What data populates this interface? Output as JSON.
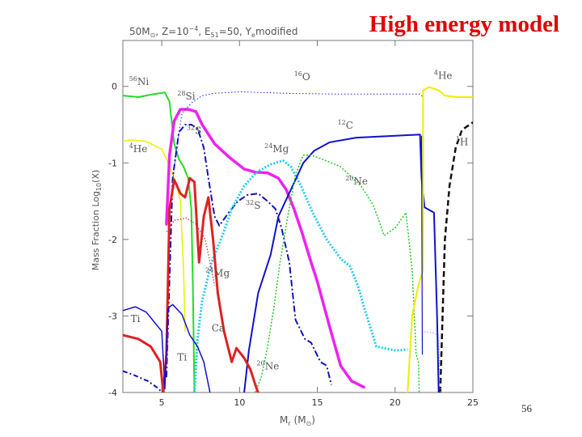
{
  "slide": {
    "title": "High energy model",
    "page_number": "56"
  },
  "chart_data": {
    "type": "line",
    "title": "50M☉, Z=10⁻⁴, E₅₁=50, Yₑmodified",
    "xlabel": "Mr (M☉)",
    "ylabel": "Mass Fraction  Log10(X)",
    "xlim": [
      2.5,
      25
    ],
    "ylim": [
      -4,
      0.6
    ],
    "xticks": [
      5,
      10,
      15,
      20,
      25
    ],
    "yticks": [
      0,
      -1,
      -2,
      -3,
      -4
    ],
    "grid": false,
    "legend": "inline labels",
    "series": [
      {
        "id": "ni56",
        "name": "56Ni",
        "color": "#22dd22",
        "width": 2,
        "dash": "",
        "points": [
          [
            2.5,
            -0.12
          ],
          [
            3.5,
            -0.14
          ],
          [
            4.5,
            -0.1
          ],
          [
            5.2,
            -0.08
          ],
          [
            5.5,
            -0.2
          ],
          [
            5.8,
            -0.75
          ],
          [
            6.1,
            -0.95
          ],
          [
            6.4,
            -1.05
          ],
          [
            6.7,
            -1.2
          ],
          [
            6.9,
            -1.6
          ],
          [
            7.0,
            -2.6
          ],
          [
            7.1,
            -4.0
          ]
        ]
      },
      {
        "id": "he4_inner",
        "name": "4He",
        "color": "#eeee00",
        "width": 1.5,
        "dash": "",
        "points": [
          [
            2.5,
            -0.72
          ],
          [
            3,
            -0.7
          ],
          [
            4,
            -0.72
          ],
          [
            5,
            -0.82
          ],
          [
            5.3,
            -0.95
          ],
          [
            5.6,
            -1.1
          ],
          [
            5.9,
            -1.25
          ],
          [
            6.2,
            -1.5
          ],
          [
            6.4,
            -2.4
          ],
          [
            6.5,
            -3.2
          ]
        ]
      },
      {
        "id": "si28",
        "name": "28Si",
        "color": "#ee22ee",
        "width": 3.5,
        "dash": "",
        "points": [
          [
            5.3,
            -1.8
          ],
          [
            5.5,
            -0.9
          ],
          [
            5.8,
            -0.45
          ],
          [
            6.2,
            -0.3
          ],
          [
            6.7,
            -0.3
          ],
          [
            7.2,
            -0.33
          ],
          [
            7.6,
            -0.5
          ],
          [
            8.4,
            -0.75
          ],
          [
            9.3,
            -0.92
          ],
          [
            10.3,
            -1.08
          ],
          [
            11,
            -1.12
          ],
          [
            11.8,
            -1.13
          ],
          [
            12.5,
            -1.2
          ],
          [
            13,
            -1.35
          ],
          [
            13.5,
            -1.6
          ],
          [
            14,
            -1.9
          ],
          [
            14.6,
            -2.3
          ],
          [
            15,
            -2.55
          ],
          [
            15.8,
            -3.15
          ],
          [
            16.5,
            -3.65
          ],
          [
            17.2,
            -3.85
          ],
          [
            18,
            -3.93
          ]
        ]
      },
      {
        "id": "o16",
        "name": "16O",
        "color": "#2222ee",
        "width": 1,
        "dash": "1.5 2.5",
        "points": [
          [
            5.3,
            -3.2
          ],
          [
            5.5,
            -1.6
          ],
          [
            5.9,
            -0.9
          ],
          [
            6.3,
            -0.35
          ],
          [
            6.9,
            -0.22
          ],
          [
            7.6,
            -0.12
          ],
          [
            8.4,
            -0.09
          ],
          [
            10,
            -0.07
          ],
          [
            13,
            -0.09
          ],
          [
            16,
            -0.1
          ],
          [
            20,
            -0.1
          ],
          [
            21.6,
            -0.1
          ],
          [
            21.8,
            -0.14
          ]
        ]
      },
      {
        "id": "s32_inner",
        "name": "32S",
        "color": "#1111bb",
        "width": 2,
        "dash": "8 3 2 3",
        "points": [
          [
            5.3,
            -3.8
          ],
          [
            5.7,
            -1.2
          ],
          [
            6.1,
            -0.6
          ],
          [
            6.5,
            -0.5
          ],
          [
            6.9,
            -0.5
          ],
          [
            7.3,
            -0.55
          ],
          [
            7.7,
            -0.8
          ],
          [
            8.0,
            -1.2
          ],
          [
            8.4,
            -1.7
          ],
          [
            8.7,
            -1.82
          ],
          [
            9.3,
            -1.65
          ],
          [
            9.9,
            -1.5
          ],
          [
            10.5,
            -1.42
          ],
          [
            11.2,
            -1.4
          ],
          [
            11.8,
            -1.5
          ],
          [
            12.3,
            -1.6
          ],
          [
            12.7,
            -1.85
          ],
          [
            13.2,
            -2.3
          ],
          [
            13.6,
            -3.05
          ],
          [
            14.2,
            -3.3
          ],
          [
            14.6,
            -3.35
          ],
          [
            15.2,
            -3.6
          ],
          [
            15.6,
            -3.65
          ],
          [
            15.9,
            -3.9
          ]
        ]
      },
      {
        "id": "mg24",
        "name": "24Mg",
        "color": "#22ccee",
        "width": 3,
        "dash": "2 2",
        "points": [
          [
            7.1,
            -4.0
          ],
          [
            7.3,
            -3.3
          ],
          [
            7.6,
            -2.8
          ],
          [
            8.2,
            -2.3
          ],
          [
            8.9,
            -1.95
          ],
          [
            9.5,
            -1.6
          ],
          [
            10.3,
            -1.3
          ],
          [
            11.1,
            -1.12
          ],
          [
            12,
            -1.02
          ],
          [
            12.8,
            -0.97
          ],
          [
            13.3,
            -1.05
          ],
          [
            14,
            -1.32
          ],
          [
            14.7,
            -1.65
          ],
          [
            15.6,
            -2.0
          ],
          [
            16.5,
            -2.25
          ],
          [
            17.1,
            -2.35
          ],
          [
            17.6,
            -2.6
          ],
          [
            18.1,
            -2.95
          ],
          [
            18.8,
            -3.4
          ],
          [
            20,
            -3.45
          ],
          [
            20.8,
            -3.44
          ]
        ]
      },
      {
        "id": "c12",
        "name": "12C",
        "color": "#1111cc",
        "width": 2,
        "dash": "",
        "points": [
          [
            10.3,
            -4.0
          ],
          [
            10.6,
            -3.45
          ],
          [
            11.2,
            -2.7
          ],
          [
            12,
            -2.2
          ],
          [
            12.5,
            -1.7
          ],
          [
            13.3,
            -1.35
          ],
          [
            14.1,
            -1.0
          ],
          [
            14.8,
            -0.84
          ],
          [
            15.8,
            -0.73
          ],
          [
            17.5,
            -0.67
          ],
          [
            19.5,
            -0.65
          ],
          [
            21.6,
            -0.63
          ],
          [
            21.7,
            -1.2
          ],
          [
            21.9,
            -1.58
          ],
          [
            22.5,
            -1.65
          ],
          [
            22.7,
            -3.0
          ],
          [
            22.8,
            -4.0
          ]
        ]
      },
      {
        "id": "ne20",
        "name": "20Ne",
        "color": "#22cc22",
        "width": 1.5,
        "dash": "2 2",
        "points": [
          [
            11,
            -4.0
          ],
          [
            11.4,
            -3.8
          ],
          [
            11.8,
            -3.4
          ],
          [
            12.2,
            -2.9
          ],
          [
            12.6,
            -2.3
          ],
          [
            13.1,
            -1.7
          ],
          [
            13.6,
            -1.15
          ],
          [
            14.1,
            -0.9
          ],
          [
            14.6,
            -0.9
          ],
          [
            15.3,
            -0.95
          ],
          [
            16.5,
            -1.05
          ],
          [
            17.8,
            -1.3
          ],
          [
            18.6,
            -1.55
          ],
          [
            19.3,
            -1.95
          ],
          [
            20,
            -1.85
          ],
          [
            20.7,
            -1.65
          ],
          [
            21.1,
            -2.4
          ],
          [
            21.35,
            -3.5
          ],
          [
            21.5,
            -3.6
          ],
          [
            21.55,
            -4.0
          ]
        ]
      },
      {
        "id": "he4_outer",
        "name": "4He",
        "color": "#eeee00",
        "width": 2,
        "dash": "",
        "points": [
          [
            20.8,
            -4.0
          ],
          [
            21.1,
            -3.0
          ],
          [
            21.5,
            -2.6
          ],
          [
            21.8,
            -2.4
          ],
          [
            21.8,
            -0.05
          ],
          [
            22.2,
            -0.01
          ],
          [
            22.8,
            -0.05
          ],
          [
            23.2,
            -0.12
          ],
          [
            24,
            -0.14
          ],
          [
            25,
            -0.14
          ]
        ]
      },
      {
        "id": "h1",
        "name": "1H",
        "color": "#111111",
        "width": 2.5,
        "dash": "7 4",
        "points": [
          [
            22.9,
            -4.0
          ],
          [
            23.05,
            -3.0
          ],
          [
            23.2,
            -2.0
          ],
          [
            23.5,
            -1.3
          ],
          [
            23.9,
            -0.8
          ],
          [
            24.3,
            -0.57
          ],
          [
            25,
            -0.47
          ]
        ]
      },
      {
        "id": "ca",
        "name": "Ca",
        "color": "#dd2222",
        "width": 3,
        "dash": "",
        "points": [
          [
            2.5,
            -3.25
          ],
          [
            3.5,
            -3.3
          ],
          [
            4.3,
            -3.4
          ],
          [
            4.9,
            -3.6
          ],
          [
            5.1,
            -4.0
          ],
          [
            5.3,
            -3.5
          ],
          [
            5.5,
            -1.6
          ],
          [
            5.8,
            -1.22
          ],
          [
            6.2,
            -1.4
          ],
          [
            6.5,
            -1.45
          ],
          [
            6.8,
            -1.2
          ],
          [
            7.1,
            -1.25
          ],
          [
            7.4,
            -2.3
          ],
          [
            7.7,
            -1.7
          ],
          [
            8.0,
            -1.45
          ],
          [
            8.3,
            -2.0
          ],
          [
            8.6,
            -2.7
          ],
          [
            9.0,
            -3.2
          ],
          [
            9.5,
            -3.6
          ],
          [
            9.8,
            -3.42
          ],
          [
            10.3,
            -3.55
          ],
          [
            10.7,
            -3.7
          ],
          [
            11.1,
            -3.95
          ],
          [
            11.2,
            -4.0
          ]
        ]
      },
      {
        "id": "ca_dotted",
        "name": "",
        "color": "#dd2222",
        "width": 1.2,
        "dash": "1.5 2",
        "points": [
          [
            5.3,
            -1.9
          ],
          [
            5.8,
            -1.75
          ],
          [
            6.6,
            -1.72
          ],
          [
            7.2,
            -1.8
          ],
          [
            7.8,
            -2.0
          ],
          [
            8.4,
            -2.6
          ]
        ]
      },
      {
        "id": "ti",
        "name": "Ti",
        "color": "#1111cc",
        "width": 1.5,
        "dash": "",
        "points": [
          [
            2.5,
            -2.93
          ],
          [
            3.3,
            -2.88
          ],
          [
            4.0,
            -2.95
          ],
          [
            4.6,
            -3.1
          ],
          [
            5.0,
            -3.2
          ],
          [
            5.2,
            -3.95
          ],
          [
            5.4,
            -2.9
          ],
          [
            5.7,
            -2.85
          ],
          [
            6.3,
            -2.98
          ],
          [
            6.8,
            -3.25
          ],
          [
            7.3,
            -3.4
          ],
          [
            7.7,
            -3.6
          ],
          [
            8.1,
            -4.0
          ]
        ]
      },
      {
        "id": "ti_dashdot",
        "name": "",
        "color": "#1111cc",
        "width": 2,
        "dash": "6 3 2 3",
        "points": [
          [
            2.5,
            -3.72
          ],
          [
            3.3,
            -3.78
          ],
          [
            4.1,
            -3.85
          ],
          [
            4.8,
            -3.95
          ],
          [
            5.0,
            -4.0
          ]
        ]
      },
      {
        "id": "right_dotted_pale",
        "name": "",
        "color": "#9999dd",
        "width": 1,
        "dash": "1.5 2",
        "points": [
          [
            21.7,
            -3.2
          ],
          [
            22.4,
            -3.22
          ],
          [
            22.8,
            -3.25
          ],
          [
            22.9,
            -4.0
          ]
        ]
      },
      {
        "id": "blue_vertical_edge",
        "name": "",
        "color": "#1111cc",
        "width": 1.2,
        "dash": "",
        "points": [
          [
            21.7,
            -0.65
          ],
          [
            21.75,
            -3.5
          ]
        ]
      }
    ],
    "annotations": [
      {
        "iso": "56",
        "el": "Ni",
        "x": 2.9,
        "y": 0.02,
        "color": "#555555"
      },
      {
        "iso": "28",
        "el": "Si",
        "x": 6.0,
        "y": -0.17,
        "color": "#555555"
      },
      {
        "iso": "16",
        "el": "O",
        "x": 13.5,
        "y": 0.08,
        "color": "#555555"
      },
      {
        "iso": "32",
        "el": "S",
        "x": 6.6,
        "y": -0.62,
        "color": "#555555"
      },
      {
        "iso": "4",
        "el": "He",
        "x": 2.9,
        "y": -0.86,
        "color": "#555555"
      },
      {
        "iso": "24",
        "el": "Mg",
        "x": 11.6,
        "y": -0.86,
        "color": "#555555"
      },
      {
        "iso": "12",
        "el": "C",
        "x": 16.3,
        "y": -0.55,
        "color": "#555555"
      },
      {
        "iso": "1",
        "el": "H",
        "x": 23.9,
        "y": -0.77,
        "color": "#555555"
      },
      {
        "iso": "4",
        "el": "He",
        "x": 22.5,
        "y": 0.1,
        "color": "#555555"
      },
      {
        "iso": "20",
        "el": "Ne",
        "x": 16.8,
        "y": -1.28,
        "color": "#555555"
      },
      {
        "iso": "32",
        "el": "S",
        "x": 10.4,
        "y": -1.6,
        "color": "#555555"
      },
      {
        "iso": "24",
        "el": "Mg",
        "x": 7.8,
        "y": -2.48,
        "color": "#555555"
      },
      {
        "iso": "",
        "el": "Ti",
        "x": 3.0,
        "y": -3.08,
        "color": "#555555"
      },
      {
        "iso": "",
        "el": "Ca",
        "x": 8.2,
        "y": -3.2,
        "color": "#555555"
      },
      {
        "iso": "",
        "el": "Ti",
        "x": 6.0,
        "y": -3.58,
        "color": "#555555"
      },
      {
        "iso": "20",
        "el": "Ne",
        "x": 11.1,
        "y": -3.7,
        "color": "#555555"
      }
    ]
  }
}
